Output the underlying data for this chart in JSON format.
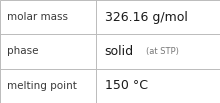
{
  "rows": [
    {
      "label": "molar mass",
      "value_main": "326.16 g/mol",
      "value_small": "",
      "small_prefix": ""
    },
    {
      "label": "phase",
      "value_main": "solid",
      "value_small": "(at STP)",
      "small_prefix": "  "
    },
    {
      "label": "melting point",
      "value_main": "150 °C",
      "value_small": "",
      "small_prefix": ""
    }
  ],
  "bg_color": "#ffffff",
  "border_color": "#bbbbbb",
  "label_color": "#3a3a3a",
  "value_color": "#1a1a1a",
  "small_color": "#777777",
  "label_fontsize": 7.5,
  "value_fontsize": 9.0,
  "small_fontsize": 6.0,
  "col_split": 0.435
}
